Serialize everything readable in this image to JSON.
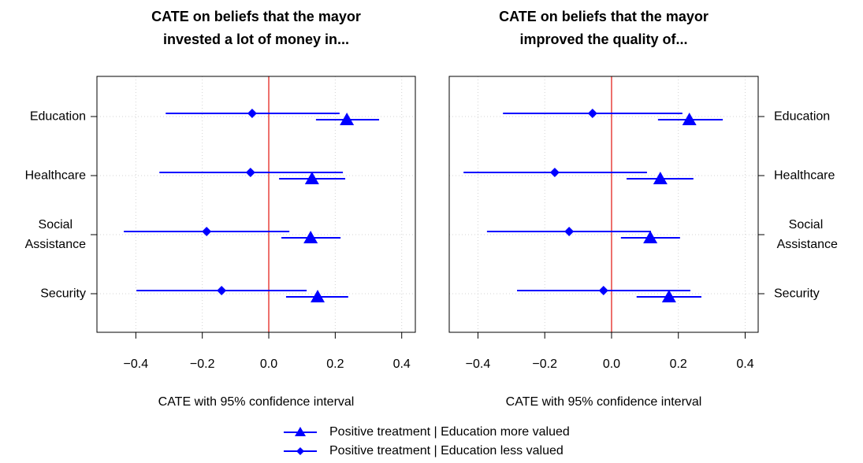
{
  "chart_data": [
    {
      "type": "dotwhisker",
      "title": [
        "CATE on beliefs that the mayor",
        "invested a lot of money in..."
      ],
      "x_label": "CATE with 95% confidence interval",
      "categories": [
        "Education",
        "Healthcare",
        "Social\nAssistance",
        "Security"
      ],
      "category_axis": "left",
      "xlim": [
        -0.517,
        0.441
      ],
      "xticks": [
        {
          "value": -0.4,
          "label": "−0.4"
        },
        {
          "value": -0.2,
          "label": "−0.2"
        },
        {
          "value": 0,
          "label": "0.0"
        },
        0.2,
        0.4
      ],
      "grid": true,
      "vline": 0,
      "vline_color": "#e8413c",
      "series": [
        {
          "name": "Positive treatment | Education more valued",
          "color": "#0000ff",
          "marker": "triangle",
          "values": [
            0.235,
            0.13,
            0.126,
            0.147
          ],
          "lower": [
            0.142,
            0.031,
            0.038,
            0.052
          ],
          "upper": [
            0.332,
            0.23,
            0.216,
            0.239
          ]
        },
        {
          "name": "Positive treatment | Education less valued",
          "color": "#0000ff",
          "marker": "diamond",
          "values": [
            -0.05,
            -0.055,
            -0.187,
            -0.142
          ],
          "lower": [
            -0.31,
            -0.329,
            -0.436,
            -0.398
          ],
          "upper": [
            0.213,
            0.223,
            0.062,
            0.114
          ]
        }
      ]
    },
    {
      "type": "dotwhisker",
      "title": [
        "CATE on beliefs that the mayor",
        "improved the quality of..."
      ],
      "x_label": "CATE with 95% confidence interval",
      "categories": [
        "Education",
        "Healthcare",
        "Social\n Assistance",
        "Security"
      ],
      "category_axis": "right",
      "xlim": [
        -0.486,
        0.439
      ],
      "xticks": [
        {
          "value": -0.4,
          "label": "−0.4"
        },
        {
          "value": -0.2,
          "label": "−0.2"
        },
        {
          "value": 0,
          "label": "0.0"
        },
        0.2,
        0.4
      ],
      "grid": true,
      "vline": 0,
      "vline_color": "#e8413c",
      "series": [
        {
          "color": "#0000ff",
          "marker": "triangle",
          "values": [
            0.233,
            0.146,
            0.116,
            0.172
          ],
          "lower": [
            0.139,
            0.045,
            0.028,
            0.075
          ],
          "upper": [
            0.333,
            0.245,
            0.205,
            0.269
          ]
        },
        {
          "color": "#0000ff",
          "marker": "diamond",
          "values": [
            -0.057,
            -0.17,
            -0.127,
            -0.024
          ],
          "lower": [
            -0.325,
            -0.443,
            -0.373,
            -0.283
          ],
          "upper": [
            0.212,
            0.106,
            0.118,
            0.236
          ]
        }
      ]
    }
  ]
}
